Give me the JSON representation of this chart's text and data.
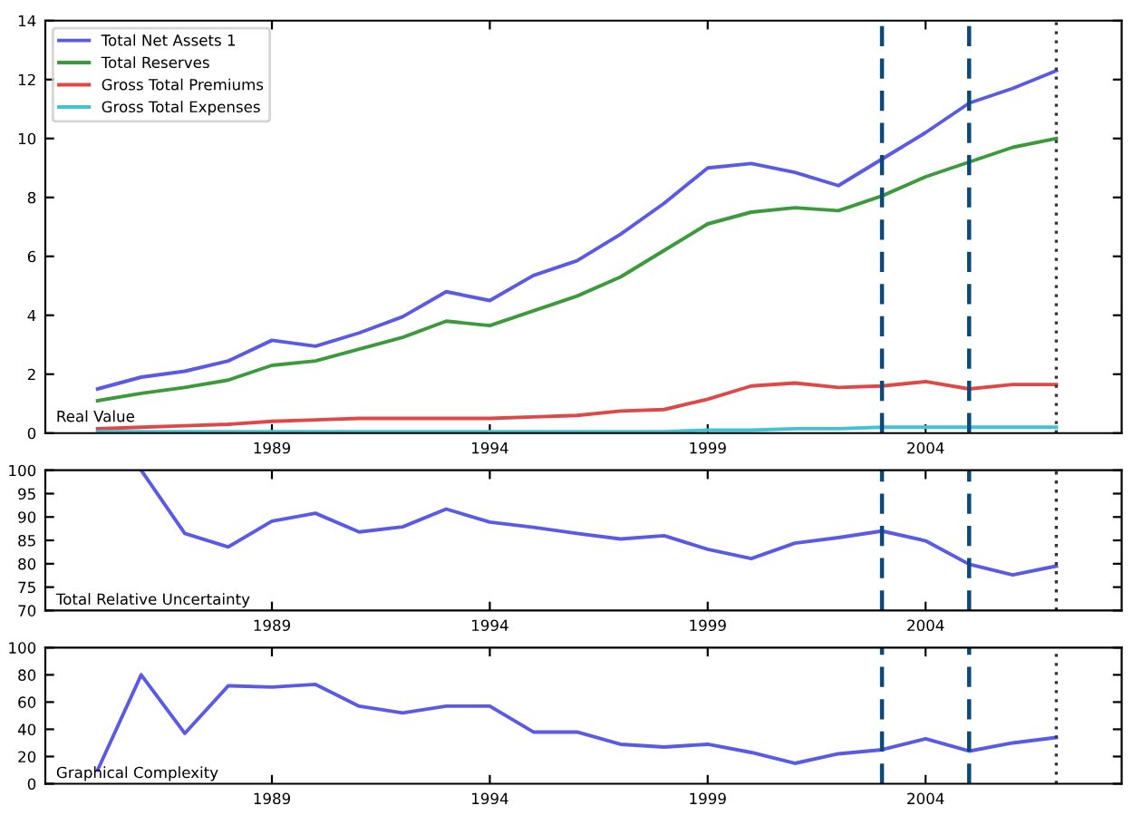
{
  "chart_data": [
    {
      "type": "line",
      "annotations": [
        "Real Value"
      ],
      "x": [
        1985,
        1986,
        1987,
        1988,
        1989,
        1990,
        1991,
        1992,
        1993,
        1994,
        1995,
        1996,
        1997,
        1998,
        1999,
        2000,
        2001,
        2002,
        2003,
        2004,
        2005,
        2006,
        2007
      ],
      "series": [
        {
          "name": "Total Net Assets 1",
          "color": "#5a5ae6",
          "values": [
            1.5,
            1.9,
            2.1,
            2.45,
            3.15,
            2.95,
            3.4,
            3.95,
            4.8,
            4.5,
            5.35,
            5.85,
            6.75,
            7.8,
            9.0,
            9.15,
            8.85,
            8.4,
            9.3,
            10.2,
            11.2,
            11.7,
            12.3
          ]
        },
        {
          "name": "Total Reserves",
          "color": "#3c9a3c",
          "values": [
            1.1,
            1.35,
            1.55,
            1.8,
            2.3,
            2.45,
            2.85,
            3.25,
            3.8,
            3.65,
            4.15,
            4.65,
            5.3,
            6.2,
            7.1,
            7.5,
            7.65,
            7.55,
            8.05,
            8.7,
            9.2,
            9.7,
            10.0
          ]
        },
        {
          "name": "Gross Total Premiums",
          "color": "#e04848",
          "values": [
            0.15,
            0.2,
            0.25,
            0.3,
            0.4,
            0.45,
            0.5,
            0.5,
            0.5,
            0.5,
            0.55,
            0.6,
            0.75,
            0.8,
            1.15,
            1.6,
            1.7,
            1.55,
            1.6,
            1.75,
            1.5,
            1.65,
            1.65
          ]
        },
        {
          "name": "Gross Total Expenses",
          "color": "#40c4d4",
          "values": [
            0.05,
            0.05,
            0.05,
            0.05,
            0.05,
            0.05,
            0.05,
            0.05,
            0.05,
            0.05,
            0.05,
            0.05,
            0.05,
            0.05,
            0.1,
            0.1,
            0.15,
            0.15,
            0.2,
            0.2,
            0.2,
            0.2,
            0.2
          ]
        }
      ],
      "xlim": [
        1983.8,
        2008.5
      ],
      "xticks": [
        1989,
        1994,
        1999,
        2004
      ],
      "ylim": [
        0,
        14
      ],
      "yticks": [
        0,
        2,
        4,
        6,
        8,
        10,
        12,
        14
      ],
      "legend": "top left",
      "grid": false,
      "ref_lines": [
        {
          "axis": "x",
          "value": 2003,
          "color": "#0a4a7a",
          "line_style": "dashed"
        },
        {
          "axis": "x",
          "value": 2005,
          "color": "#0a4a7a",
          "line_style": "dashed"
        },
        {
          "axis": "x",
          "value": 2007,
          "color": "#333333",
          "line_style": "dotted"
        }
      ]
    },
    {
      "type": "line",
      "annotations": [
        "Total Relative Uncertainty"
      ],
      "x": [
        1986,
        1987,
        1988,
        1989,
        1990,
        1991,
        1992,
        1993,
        1994,
        1995,
        1996,
        1997,
        1998,
        1999,
        2000,
        2001,
        2002,
        2003,
        2004,
        2005,
        2006,
        2007
      ],
      "series": [
        {
          "color": "#5a5ae6",
          "values": [
            100,
            86.5,
            83.6,
            89.1,
            90.8,
            86.8,
            87.9,
            91.7,
            88.9,
            87.8,
            86.5,
            85.3,
            86.0,
            83.1,
            81.1,
            84.4,
            85.6,
            87.0,
            84.9,
            79.9,
            77.6,
            79.5
          ]
        }
      ],
      "xlim": [
        1983.8,
        2008.5
      ],
      "xticks": [
        1989,
        1994,
        1999,
        2004
      ],
      "ylim": [
        70,
        100
      ],
      "yticks": [
        70,
        75,
        80,
        85,
        90,
        95,
        100
      ],
      "grid": false,
      "ref_lines": [
        {
          "axis": "x",
          "value": 2003,
          "color": "#0a4a7a",
          "line_style": "dashed"
        },
        {
          "axis": "x",
          "value": 2005,
          "color": "#0a4a7a",
          "line_style": "dashed"
        },
        {
          "axis": "x",
          "value": 2007,
          "color": "#333333",
          "line_style": "dotted"
        }
      ]
    },
    {
      "type": "line",
      "annotations": [
        "Graphical Complexity"
      ],
      "x": [
        1985,
        1986,
        1987,
        1988,
        1989,
        1990,
        1991,
        1992,
        1993,
        1994,
        1995,
        1996,
        1997,
        1998,
        1999,
        2000,
        2001,
        2002,
        2003,
        2004,
        2005,
        2006,
        2007
      ],
      "series": [
        {
          "color": "#5a5ae6",
          "values": [
            10,
            80,
            37,
            72,
            71,
            73,
            57,
            52,
            57,
            57,
            38,
            38,
            29,
            27,
            29,
            23,
            15,
            22,
            25,
            33,
            24,
            30,
            34
          ]
        }
      ],
      "xlim": [
        1983.8,
        2008.5
      ],
      "xticks": [
        1989,
        1994,
        1999,
        2004
      ],
      "ylim": [
        0,
        100
      ],
      "yticks": [
        0,
        20,
        40,
        60,
        80,
        100
      ],
      "grid": false,
      "ref_lines": [
        {
          "axis": "x",
          "value": 2003,
          "color": "#0a4a7a",
          "line_style": "dashed"
        },
        {
          "axis": "x",
          "value": 2005,
          "color": "#0a4a7a",
          "line_style": "dashed"
        },
        {
          "axis": "x",
          "value": 2007,
          "color": "#333333",
          "line_style": "dotted"
        }
      ]
    }
  ]
}
